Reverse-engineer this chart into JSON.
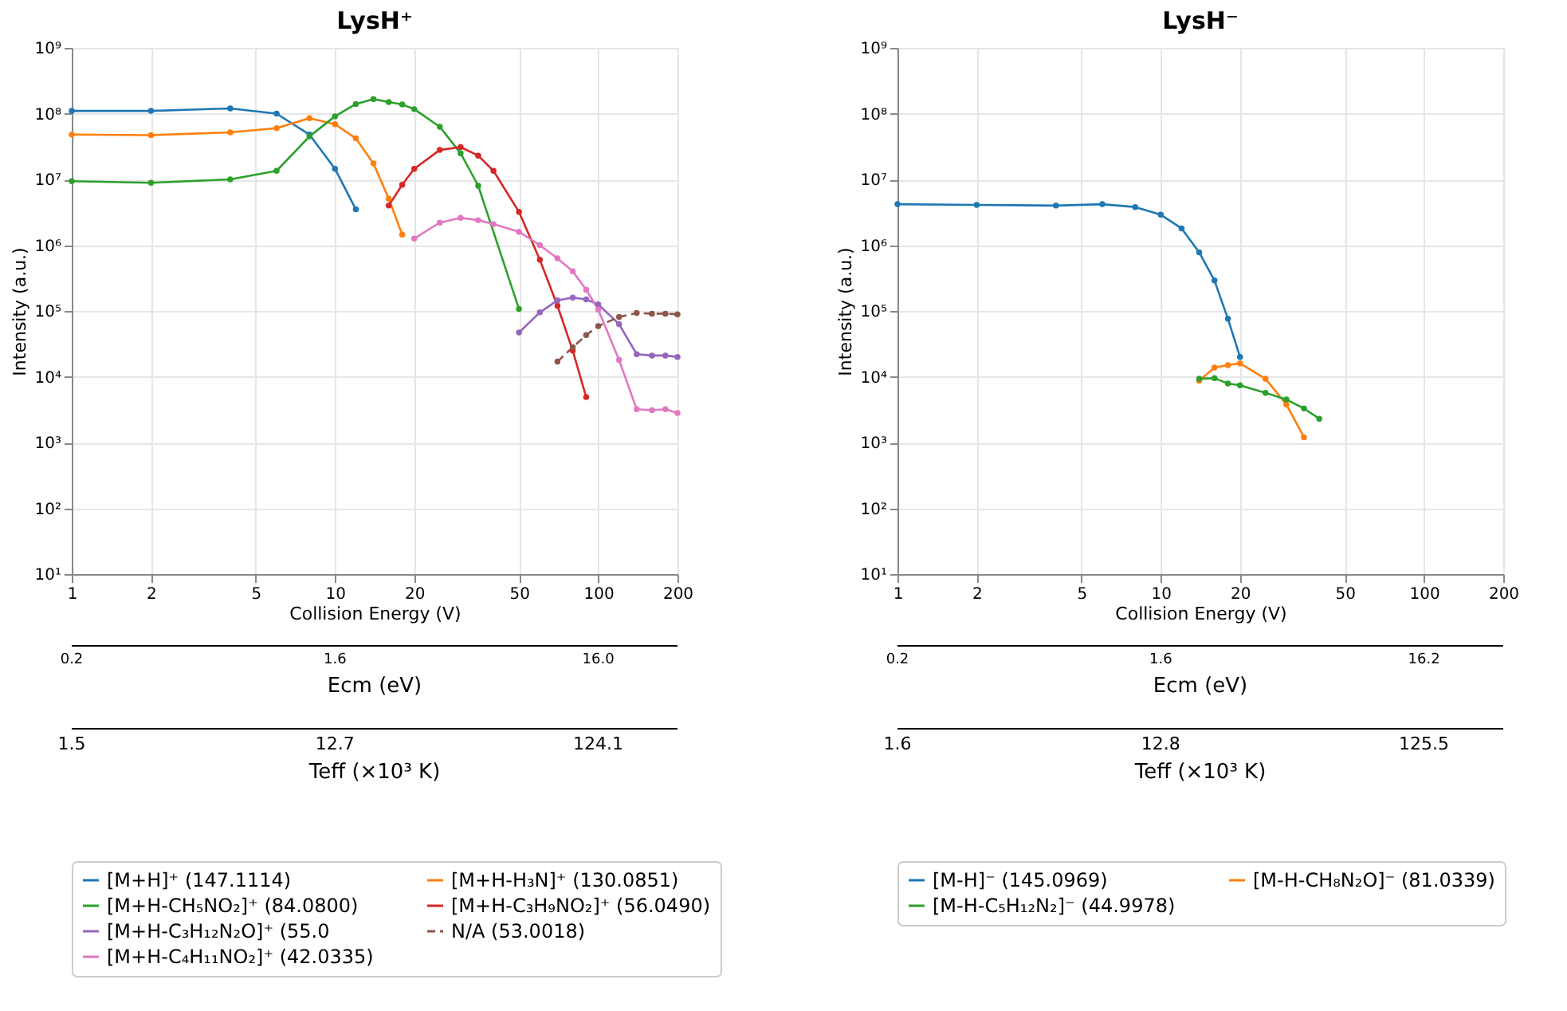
{
  "chart_data": [
    {
      "type": "line",
      "title": "LysH⁺",
      "xlabel": "Collision Energy (V)",
      "ylabel": "Intensity (a.u.)",
      "log": "xy",
      "grid": true,
      "legend": "bottom",
      "marker": "circle",
      "annotations": [
        "0.2",
        "1.6",
        "16.0",
        "Ecm (eV)",
        "1.5",
        "12.7",
        "124.1",
        "Teff (×10³ K)"
      ],
      "xlim": [
        1,
        200
      ],
      "xticks": [
        1,
        2,
        5,
        10,
        20,
        50,
        100,
        200
      ],
      "ylim": [
        10,
        1000000000
      ],
      "yticks": [
        {
          "value": 10,
          "label": "10¹"
        },
        {
          "value": 100,
          "label": "10²"
        },
        {
          "value": 1000,
          "label": "10³"
        },
        {
          "value": 10000,
          "label": "10⁴"
        },
        {
          "value": 100000,
          "label": "10⁵"
        },
        {
          "value": 1000000,
          "label": "10⁶"
        },
        {
          "value": 10000000,
          "label": "10⁷"
        },
        {
          "value": 100000000,
          "label": "10⁸"
        },
        {
          "value": 1000000000,
          "label": "10⁹"
        }
      ],
      "series": [
        {
          "name": "[M+H]⁺ (147.1114)",
          "color": "#1f77b4",
          "x": [
            1,
            2,
            4,
            6,
            8,
            10,
            12
          ],
          "values": [
            110000000,
            110000000,
            120000000,
            100000000,
            48000000,
            14500000,
            3500000
          ]
        },
        {
          "name": "[M+H-H₃N]⁺ (130.0851)",
          "color": "#ff7f0e",
          "x": [
            1,
            2,
            4,
            6,
            8,
            10,
            12,
            14,
            16,
            18
          ],
          "values": [
            48000000,
            47000000,
            52000000,
            60000000,
            85000000,
            69000000,
            42000000,
            17500000,
            5100000,
            1450000
          ]
        },
        {
          "name": "[M+H-CH₅NO₂]⁺ (84.0800)",
          "color": "#2ca02c",
          "x": [
            1,
            2,
            4,
            6,
            8,
            10,
            12,
            14,
            16,
            18,
            20,
            25,
            30,
            35,
            50
          ],
          "values": [
            9400000,
            8900000,
            10000000,
            13500000,
            45000000,
            91000000,
            140000000,
            166000000,
            150000000,
            138000000,
            117000000,
            63000000,
            25000000,
            8000000,
            107000
          ]
        },
        {
          "name": "[M+H-C₃H₉NO₂]⁺ (56.0490)",
          "color": "#d62728",
          "x": [
            16,
            18,
            20,
            25,
            30,
            35,
            40,
            50,
            60,
            70,
            80,
            90
          ],
          "values": [
            4000000,
            8300000,
            14500000,
            28000000,
            31000000,
            23000000,
            13500000,
            3200000,
            600000,
            120000,
            25000,
            4900
          ]
        },
        {
          "name": "[M+H-C₃H₁₂N₂O]⁺ (55.0",
          "color": "#9467bd",
          "x": [
            50,
            60,
            70,
            80,
            90,
            100,
            120,
            140,
            160,
            180,
            200
          ],
          "values": [
            47000,
            95000,
            145000,
            160000,
            150000,
            126000,
            63000,
            22000,
            21000,
            21000,
            20000
          ]
        },
        {
          "name": "N/A (53.0018)",
          "color": "#8c564b",
          "line_style": "dashed",
          "x": [
            70,
            80,
            90,
            100,
            120,
            140,
            160,
            180,
            200
          ],
          "values": [
            17000,
            28000,
            43000,
            59000,
            81000,
            93000,
            91000,
            91000,
            89000
          ]
        },
        {
          "name": "[M+H-C₄H₁₁NO₂]⁺ (42.0335)",
          "color": "#e377c2",
          "x": [
            20,
            25,
            30,
            35,
            40,
            50,
            60,
            70,
            80,
            90,
            100,
            120,
            140,
            160,
            180,
            200
          ],
          "values": [
            1260000,
            2200000,
            2600000,
            2400000,
            2100000,
            1600000,
            1000000,
            630000,
            400000,
            210000,
            105000,
            18000,
            3200,
            3100,
            3200,
            2800
          ]
        }
      ]
    },
    {
      "type": "line",
      "title": "LysH⁻",
      "xlabel": "Collision Energy (V)",
      "ylabel": "Intensity (a.u.)",
      "log": "xy",
      "grid": true,
      "legend": "bottom",
      "marker": "circle",
      "annotations": [
        "0.2",
        "1.6",
        "16.2",
        "Ecm (eV)",
        "1.6",
        "12.8",
        "125.5",
        "Teff (×10³ K)"
      ],
      "xlim": [
        1,
        200
      ],
      "xticks": [
        1,
        2,
        5,
        10,
        20,
        50,
        100,
        200
      ],
      "ylim": [
        10,
        1000000000
      ],
      "yticks": [
        {
          "value": 10,
          "label": "10¹"
        },
        {
          "value": 100,
          "label": "10²"
        },
        {
          "value": 1000,
          "label": "10³"
        },
        {
          "value": 10000,
          "label": "10⁴"
        },
        {
          "value": 100000,
          "label": "10⁵"
        },
        {
          "value": 1000000,
          "label": "10⁶"
        },
        {
          "value": 10000000,
          "label": "10⁷"
        },
        {
          "value": 100000000,
          "label": "10⁸"
        },
        {
          "value": 1000000000,
          "label": "10⁹"
        }
      ],
      "series": [
        {
          "name": "[M-H]⁻ (145.0969)",
          "color": "#1f77b4",
          "x": [
            1,
            2,
            4,
            6,
            8,
            10,
            12,
            14,
            16,
            18,
            20
          ],
          "values": [
            4200000,
            4100000,
            4000000,
            4200000,
            3800000,
            2900000,
            1800000,
            780000,
            290000,
            76000,
            20000
          ]
        },
        {
          "name": "[M-H-CH₈N₂O]⁻ (81.0339)",
          "color": "#ff7f0e",
          "x": [
            14,
            16,
            18,
            20,
            25,
            30,
            35
          ],
          "values": [
            8700,
            13800,
            15000,
            16000,
            9300,
            3800,
            1200
          ]
        },
        {
          "name": "[M-H-C₅H₁₂N₂]⁻ (44.9978)",
          "color": "#2ca02c",
          "x": [
            14,
            16,
            18,
            20,
            25,
            30,
            35,
            40
          ],
          "values": [
            9300,
            9500,
            7900,
            7400,
            5700,
            4500,
            3300,
            2300
          ]
        }
      ]
    }
  ]
}
